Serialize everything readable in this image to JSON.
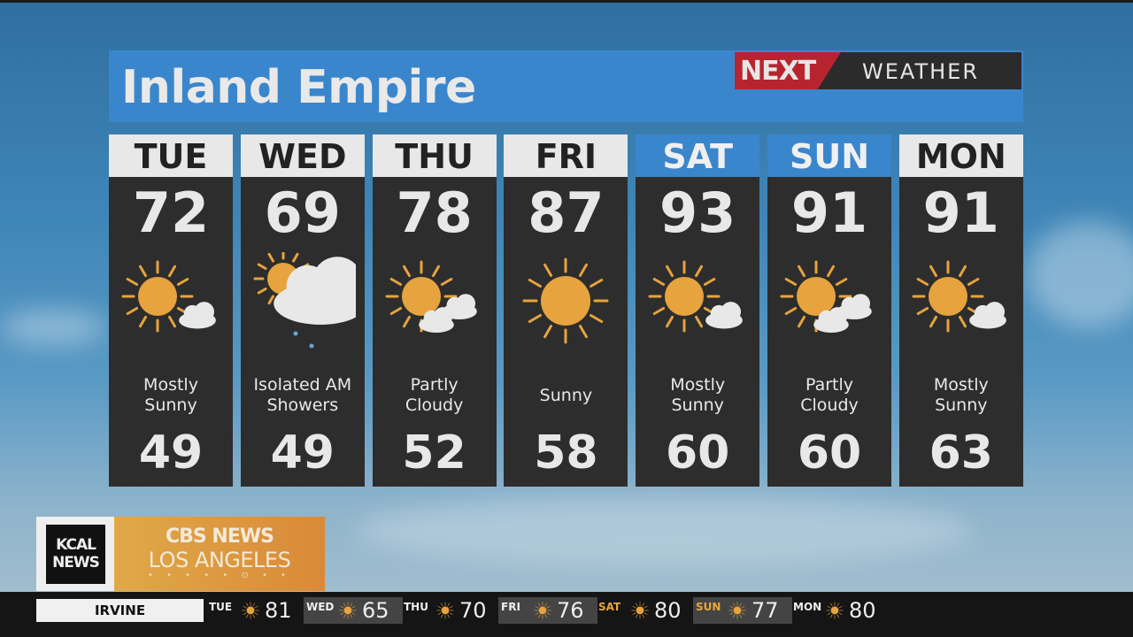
{
  "header": {
    "title": "Inland Empire",
    "logo": {
      "next": "NEXT",
      "weather": "WEATHER"
    }
  },
  "colors": {
    "header_blue": "#3a86cc",
    "card": "#2d2d2d",
    "sun": "#e6a33e",
    "logo_red": "#b8242e",
    "brand_orange": "#d98a38"
  },
  "forecast": [
    {
      "day": "TUE",
      "high": "72",
      "low": "49",
      "condition": "Mostly Sunny",
      "icon": "mostly-sunny",
      "weekend": false
    },
    {
      "day": "WED",
      "high": "69",
      "low": "49",
      "condition": "Isolated AM Showers",
      "icon": "showers",
      "weekend": false
    },
    {
      "day": "THU",
      "high": "78",
      "low": "52",
      "condition": "Partly Cloudy",
      "icon": "partly-cloudy",
      "weekend": false
    },
    {
      "day": "FRI",
      "high": "87",
      "low": "58",
      "condition": "Sunny",
      "icon": "sunny",
      "weekend": false
    },
    {
      "day": "SAT",
      "high": "93",
      "low": "60",
      "condition": "Mostly Sunny",
      "icon": "mostly-sunny",
      "weekend": true
    },
    {
      "day": "SUN",
      "high": "91",
      "low": "60",
      "condition": "Partly Cloudy",
      "icon": "partly-cloudy",
      "weekend": true
    },
    {
      "day": "MON",
      "high": "91",
      "low": "63",
      "condition": "Mostly Sunny",
      "icon": "mostly-sunny",
      "weekend": false
    }
  ],
  "brand": {
    "station": "KCAL NEWS",
    "network": "CBS NEWS",
    "market": "LOS ANGELES"
  },
  "ticker": {
    "city": "IRVINE",
    "days": [
      {
        "day": "TUE",
        "temp": "81",
        "icon": "sun",
        "weekend": false
      },
      {
        "day": "WED",
        "temp": "65",
        "icon": "sun",
        "weekend": false
      },
      {
        "day": "THU",
        "temp": "70",
        "icon": "sun",
        "weekend": false
      },
      {
        "day": "FRI",
        "temp": "76",
        "icon": "sun",
        "weekend": false
      },
      {
        "day": "SAT",
        "temp": "80",
        "icon": "sun",
        "weekend": true
      },
      {
        "day": "SUN",
        "temp": "77",
        "icon": "sun",
        "weekend": true
      },
      {
        "day": "MON",
        "temp": "80",
        "icon": "sun",
        "weekend": false
      }
    ]
  }
}
